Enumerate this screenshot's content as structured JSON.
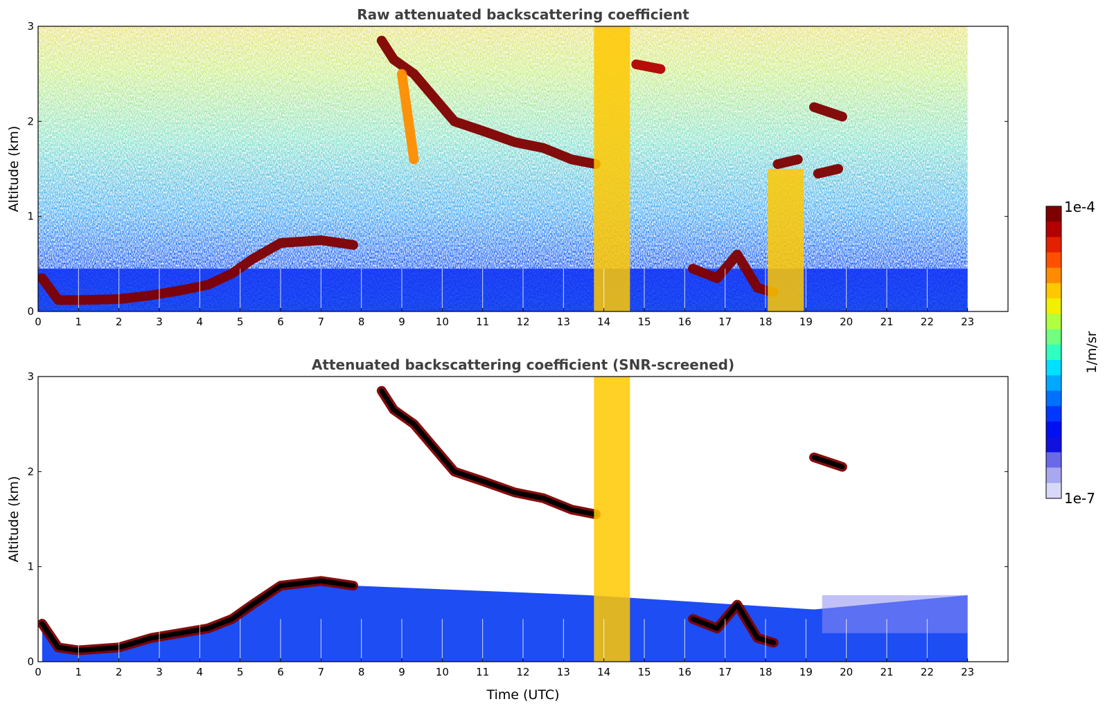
{
  "chart_data": [
    {
      "type": "heatmap",
      "title": "Raw attenuated backscattering coefficient",
      "xlabel": "",
      "ylabel": "Altitude (km)",
      "xlim": [
        0,
        24
      ],
      "ylim": [
        0,
        3
      ],
      "x_ticks": [
        "0",
        "1",
        "2",
        "3",
        "4",
        "5",
        "6",
        "7",
        "8",
        "9",
        "10",
        "11",
        "12",
        "13",
        "14",
        "15",
        "16",
        "17",
        "18",
        "19",
        "20",
        "21",
        "22",
        "23"
      ],
      "y_ticks": [
        "0",
        "1",
        "2",
        "3"
      ],
      "data_time_range": [
        0,
        23
      ],
      "colorscale": "jet, log",
      "features": [
        {
          "name": "boundary layer top",
          "points": [
            [
              0.1,
              0.35
            ],
            [
              0.5,
              0.12
            ],
            [
              1,
              0.12
            ],
            [
              2,
              0.13
            ],
            [
              2.8,
              0.17
            ],
            [
              3.5,
              0.22
            ],
            [
              4.2,
              0.28
            ],
            [
              4.8,
              0.4
            ],
            [
              5.3,
              0.55
            ],
            [
              6,
              0.72
            ],
            [
              7,
              0.75
            ],
            [
              7.8,
              0.7
            ]
          ],
          "level": 1.0
        },
        {
          "name": "cloud layer descending",
          "points": [
            [
              8.5,
              2.85
            ],
            [
              8.8,
              2.65
            ],
            [
              9.3,
              2.5
            ],
            [
              9.8,
              2.25
            ],
            [
              10.3,
              2.0
            ],
            [
              11,
              1.9
            ],
            [
              11.8,
              1.78
            ],
            [
              12.5,
              1.72
            ],
            [
              13.2,
              1.6
            ],
            [
              13.8,
              1.55
            ]
          ],
          "level": 1.0
        },
        {
          "name": "precipitation fall streak",
          "points": [
            [
              9.0,
              2.5
            ],
            [
              9.3,
              1.6
            ]
          ],
          "level": 0.78
        },
        {
          "name": "precipitation column",
          "points": [
            [
              14.2,
              0
            ],
            [
              14.2,
              3.0
            ]
          ],
          "level": 0.72
        },
        {
          "name": "upper cloud",
          "points": [
            [
              14.8,
              2.6
            ],
            [
              15.4,
              2.55
            ]
          ],
          "level": 0.95
        },
        {
          "name": "low cloud 16-18",
          "points": [
            [
              16.2,
              0.45
            ],
            [
              16.8,
              0.35
            ],
            [
              17.3,
              0.6
            ],
            [
              17.8,
              0.25
            ],
            [
              18.2,
              0.2
            ]
          ],
          "level": 1.0
        },
        {
          "name": "cloud 18.5",
          "points": [
            [
              18.3,
              1.55
            ],
            [
              18.8,
              1.6
            ]
          ],
          "level": 1.0
        },
        {
          "name": "precipitation 18.5",
          "points": [
            [
              18.5,
              0
            ],
            [
              18.5,
              1.5
            ]
          ],
          "level": 0.75
        },
        {
          "name": "cloud 19.5",
          "points": [
            [
              19.2,
              2.15
            ],
            [
              19.9,
              2.05
            ]
          ],
          "level": 1.0
        },
        {
          "name": "cloud 19.5 lower",
          "points": [
            [
              19.3,
              1.45
            ],
            [
              19.8,
              1.5
            ]
          ],
          "level": 1.0
        }
      ]
    },
    {
      "type": "heatmap",
      "title": "Attenuated backscattering coefficient (SNR-screened)",
      "xlabel": "Time (UTC)",
      "ylabel": "Altitude (km)",
      "xlim": [
        0,
        24
      ],
      "ylim": [
        0,
        3
      ],
      "x_ticks": [
        "0",
        "1",
        "2",
        "3",
        "4",
        "5",
        "6",
        "7",
        "8",
        "9",
        "10",
        "11",
        "12",
        "13",
        "14",
        "15",
        "16",
        "17",
        "18",
        "19",
        "20",
        "21",
        "22",
        "23"
      ],
      "y_ticks": [
        "0",
        "1",
        "2",
        "3"
      ],
      "data_time_range": [
        0,
        23
      ],
      "colorscale": "jet, log",
      "features": [
        {
          "name": "boundary layer top",
          "points": [
            [
              0.1,
              0.4
            ],
            [
              0.5,
              0.15
            ],
            [
              1,
              0.12
            ],
            [
              2,
              0.15
            ],
            [
              2.8,
              0.25
            ],
            [
              3.5,
              0.3
            ],
            [
              4.2,
              0.35
            ],
            [
              4.8,
              0.45
            ],
            [
              5.3,
              0.6
            ],
            [
              6,
              0.8
            ],
            [
              7,
              0.85
            ],
            [
              7.8,
              0.8
            ]
          ],
          "level": 1.0
        },
        {
          "name": "cloud layer descending",
          "points": [
            [
              8.5,
              2.85
            ],
            [
              8.8,
              2.65
            ],
            [
              9.3,
              2.5
            ],
            [
              9.8,
              2.25
            ],
            [
              10.3,
              2.0
            ],
            [
              11,
              1.9
            ],
            [
              11.8,
              1.78
            ],
            [
              12.5,
              1.72
            ],
            [
              13.2,
              1.6
            ],
            [
              13.8,
              1.55
            ]
          ],
          "level": 1.0
        },
        {
          "name": "precipitation column",
          "points": [
            [
              14.2,
              0
            ],
            [
              14.2,
              3.0
            ]
          ],
          "level": 0.72
        },
        {
          "name": "low cloud 16-18",
          "points": [
            [
              16.2,
              0.45
            ],
            [
              16.8,
              0.35
            ],
            [
              17.3,
              0.6
            ],
            [
              17.8,
              0.25
            ],
            [
              18.2,
              0.2
            ]
          ],
          "level": 1.0
        },
        {
          "name": "cloud 19.5",
          "points": [
            [
              19.2,
              2.15
            ],
            [
              19.9,
              2.05
            ]
          ],
          "level": 1.0
        }
      ]
    }
  ],
  "colorbar": {
    "label": "1/m/sr",
    "max_label": "1e-4",
    "min_label": "1e-7",
    "colors": [
      "#7f0000",
      "#b30000",
      "#e32000",
      "#ff5000",
      "#ff8c00",
      "#ffc800",
      "#f0f000",
      "#b0ff40",
      "#70ff80",
      "#30ffc0",
      "#00e0ff",
      "#00a8ff",
      "#0070ff",
      "#0038ff",
      "#0010f0",
      "#1010e0",
      "#6a6ae8",
      "#a8a8f0",
      "#d8d8f8"
    ]
  }
}
